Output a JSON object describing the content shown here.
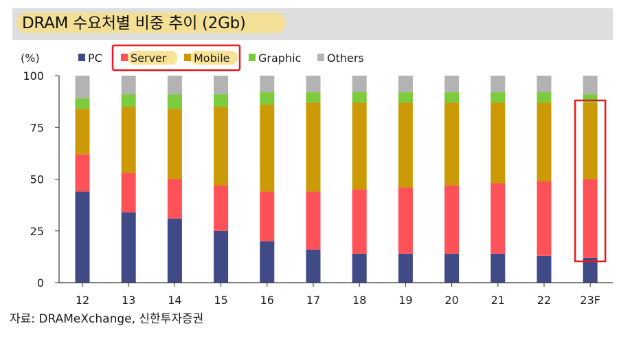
{
  "title": "DRAM 수요처별 비중 추이 (2Gb)",
  "source": "자료: DRAMeXchange, 신한투자증권",
  "colors": {
    "PC": "#3f4a86",
    "Server": "#ff5258",
    "Mobile": "#cc9a06",
    "Graphic": "#7ccb3c",
    "Others": "#b3b3b3",
    "highlight_box": "#e8191c",
    "legend_highlight": "#f7e08a"
  },
  "chart_data": {
    "type": "bar",
    "stacked": true,
    "ylabel": "(%)",
    "ylim": [
      0,
      100
    ],
    "yticks": [
      0,
      25,
      50,
      75,
      100
    ],
    "grid": false,
    "legend_position": "top-left",
    "highlighted_legend": [
      "Server",
      "Mobile"
    ],
    "highlighted_category": "23F",
    "categories": [
      "12",
      "13",
      "14",
      "15",
      "16",
      "17",
      "18",
      "19",
      "20",
      "21",
      "22",
      "23F"
    ],
    "series": [
      {
        "name": "PC",
        "values": [
          44,
          34,
          31,
          25,
          20,
          16,
          14,
          14,
          14,
          14,
          13,
          12
        ]
      },
      {
        "name": "Server",
        "values": [
          18,
          19,
          19,
          22,
          24,
          28,
          31,
          32,
          33,
          34,
          36,
          38
        ]
      },
      {
        "name": "Mobile",
        "values": [
          22,
          32,
          34,
          38,
          42,
          43,
          42,
          41,
          40,
          39,
          38,
          37
        ]
      },
      {
        "name": "Graphic",
        "values": [
          5,
          6,
          7,
          6,
          6,
          5,
          5,
          5,
          5,
          5,
          5,
          4
        ]
      },
      {
        "name": "Others",
        "values": [
          11,
          9,
          9,
          9,
          8,
          8,
          8,
          8,
          8,
          8,
          8,
          9
        ]
      }
    ]
  }
}
